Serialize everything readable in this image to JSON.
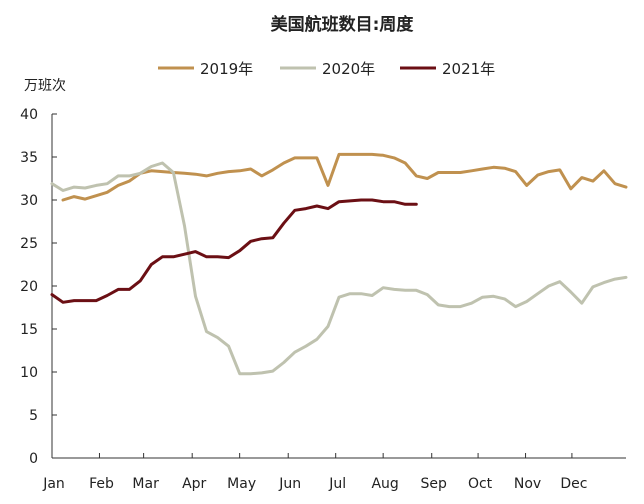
{
  "chart_data": {
    "type": "line",
    "title": "美国航班数目:周度",
    "ylabel": "万班次",
    "xlabel": "",
    "ylim": [
      0,
      40
    ],
    "yticks": [
      0,
      5,
      10,
      15,
      20,
      25,
      30,
      35,
      40
    ],
    "xlim": [
      0,
      52
    ],
    "xticks": [
      {
        "label": "Jan",
        "x": 0
      },
      {
        "label": "Feb",
        "x": 4.3
      },
      {
        "label": "Mar",
        "x": 8.3
      },
      {
        "label": "Apr",
        "x": 12.7
      },
      {
        "label": "May",
        "x": 17
      },
      {
        "label": "Jun",
        "x": 21.4
      },
      {
        "label": "Jul",
        "x": 25.7
      },
      {
        "label": "Aug",
        "x": 30
      },
      {
        "label": "Sep",
        "x": 34.4
      },
      {
        "label": "Oct",
        "x": 38.6
      },
      {
        "label": "Nov",
        "x": 42.9
      },
      {
        "label": "Dec",
        "x": 47.1
      }
    ],
    "grid": false,
    "legend_position": "top",
    "series": [
      {
        "name": "2019年",
        "color": "#C0914F",
        "x": [
          1,
          2,
          3,
          4,
          5,
          6,
          7,
          8,
          9,
          10,
          11,
          12,
          13,
          14,
          15,
          16,
          17,
          18,
          19,
          20,
          21,
          22,
          23,
          24,
          25,
          26,
          27,
          28,
          29,
          30,
          31,
          32,
          33,
          34,
          35,
          36,
          37,
          38,
          39,
          40,
          41,
          42,
          43,
          44,
          45,
          46,
          47,
          48,
          49,
          50,
          51,
          52
        ],
        "values": [
          30.0,
          30.4,
          30.1,
          30.5,
          30.9,
          31.7,
          32.2,
          33.1,
          33.4,
          33.3,
          33.2,
          33.1,
          33.0,
          32.8,
          33.1,
          33.3,
          33.4,
          33.6,
          32.8,
          33.5,
          34.3,
          34.9,
          34.9,
          34.9,
          31.7,
          35.3,
          35.3,
          35.3,
          35.3,
          35.2,
          34.9,
          34.3,
          32.8,
          32.5,
          33.2,
          33.2,
          33.2,
          33.4,
          33.6,
          33.8,
          33.7,
          33.3,
          31.7,
          32.9,
          33.3,
          33.5,
          31.3,
          32.6,
          32.2,
          33.4,
          31.9,
          31.5
        ]
      },
      {
        "name": "2020年",
        "color": "#BFC2AF",
        "x": [
          0,
          1,
          2,
          3,
          4,
          5,
          6,
          7,
          8,
          9,
          10,
          11,
          12,
          13,
          14,
          15,
          16,
          17,
          18,
          19,
          20,
          21,
          22,
          23,
          24,
          25,
          26,
          27,
          28,
          29,
          30,
          31,
          32,
          33,
          34,
          35,
          36,
          37,
          38,
          39,
          40,
          41,
          42,
          43,
          44,
          45,
          46,
          47,
          48,
          49,
          50,
          51,
          52
        ],
        "values": [
          31.9,
          31.1,
          31.5,
          31.4,
          31.7,
          31.9,
          32.8,
          32.8,
          33.1,
          33.9,
          34.3,
          33.2,
          27.0,
          18.8,
          14.7,
          14.0,
          13.0,
          9.8,
          9.8,
          9.9,
          10.1,
          11.1,
          12.3,
          13.0,
          13.8,
          15.3,
          18.7,
          19.1,
          19.1,
          18.9,
          19.8,
          19.6,
          19.5,
          19.5,
          19.0,
          17.8,
          17.6,
          17.6,
          18.0,
          18.7,
          18.8,
          18.5,
          17.6,
          18.2,
          19.1,
          20.0,
          20.5,
          19.3,
          18.0,
          19.9,
          20.4,
          20.8,
          21.0
        ]
      },
      {
        "name": "2021年",
        "color": "#6B0F14",
        "x": [
          0,
          1,
          2,
          3,
          4,
          5,
          6,
          7,
          8,
          9,
          10,
          11,
          12,
          13,
          14,
          15,
          16,
          17,
          18,
          19,
          20,
          21,
          22,
          23,
          24,
          25,
          26,
          27,
          28,
          29,
          30,
          31,
          32,
          33
        ],
        "values": [
          19.0,
          18.1,
          18.3,
          18.3,
          18.3,
          18.9,
          19.6,
          19.6,
          20.6,
          22.5,
          23.4,
          23.4,
          23.7,
          24.0,
          23.4,
          23.4,
          23.3,
          24.1,
          25.2,
          25.5,
          25.6,
          27.3,
          28.8,
          29.0,
          29.3,
          29.0,
          29.8,
          29.9,
          30.0,
          30.0,
          29.8,
          29.8,
          29.5,
          29.5
        ]
      }
    ]
  }
}
